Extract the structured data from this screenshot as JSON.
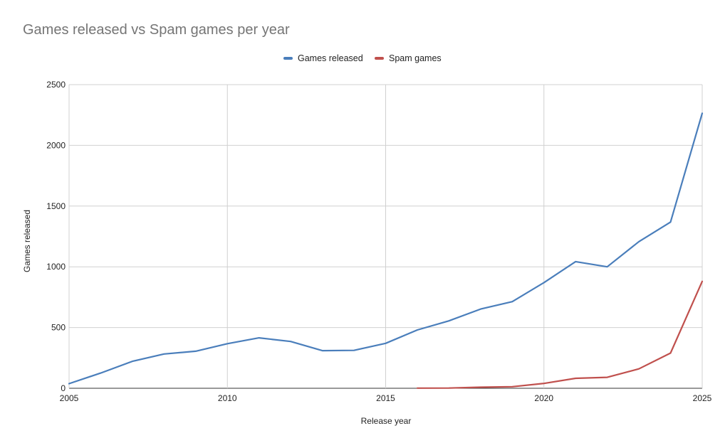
{
  "chart_data": {
    "type": "line",
    "title": "Games released vs Spam games per year",
    "xlabel": "Release year",
    "ylabel": "Games released",
    "xlim": [
      2005,
      2025
    ],
    "ylim": [
      0,
      2500
    ],
    "xticks": [
      2005,
      2010,
      2015,
      2020,
      2025
    ],
    "yticks": [
      0,
      500,
      1000,
      1500,
      2000,
      2500
    ],
    "grid": true,
    "legend_position": "top-center",
    "series": [
      {
        "name": "Games released",
        "color": "#4a7ebb",
        "x": [
          2005,
          2006,
          2007,
          2008,
          2009,
          2010,
          2011,
          2012,
          2013,
          2014,
          2015,
          2016,
          2017,
          2018,
          2019,
          2020,
          2021,
          2022,
          2023,
          2024,
          2025
        ],
        "values": [
          38,
          125,
          222,
          282,
          305,
          367,
          415,
          385,
          310,
          312,
          370,
          480,
          555,
          652,
          713,
          870,
          1043,
          1000,
          1207,
          1368,
          2264
        ]
      },
      {
        "name": "Spam games",
        "color": "#c0504d",
        "x": [
          2016,
          2017,
          2018,
          2019,
          2020,
          2021,
          2022,
          2023,
          2024,
          2025
        ],
        "values": [
          1,
          2,
          9,
          13,
          40,
          82,
          90,
          160,
          290,
          880
        ]
      }
    ]
  }
}
